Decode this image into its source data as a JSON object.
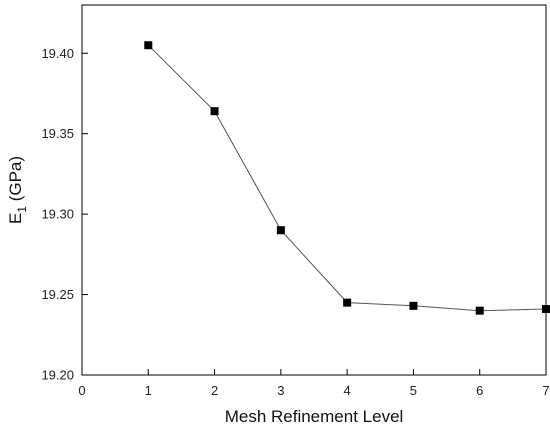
{
  "chart_data": {
    "type": "line",
    "title": "",
    "xlabel": "Mesh Refinement Level",
    "ylabel": {
      "base": "E",
      "sub": "1",
      "unit": " (GPa)"
    },
    "xlim": [
      0,
      7
    ],
    "ylim": [
      19.2,
      19.43
    ],
    "xticks": [
      0,
      1,
      2,
      3,
      4,
      5,
      6,
      7
    ],
    "yticks": [
      19.2,
      19.25,
      19.3,
      19.35,
      19.4
    ],
    "ytick_labels": [
      "19.20",
      "19.25",
      "19.30",
      "19.35",
      "19.40"
    ],
    "grid": false,
    "marker": "square",
    "colors": {
      "line": "#555555",
      "marker": "#000000",
      "axis": "#000000"
    },
    "series": [
      {
        "x": [
          1,
          2,
          3,
          4,
          5,
          6,
          7
        ],
        "values": [
          19.405,
          19.364,
          19.29,
          19.245,
          19.243,
          19.24,
          19.241
        ]
      }
    ]
  }
}
